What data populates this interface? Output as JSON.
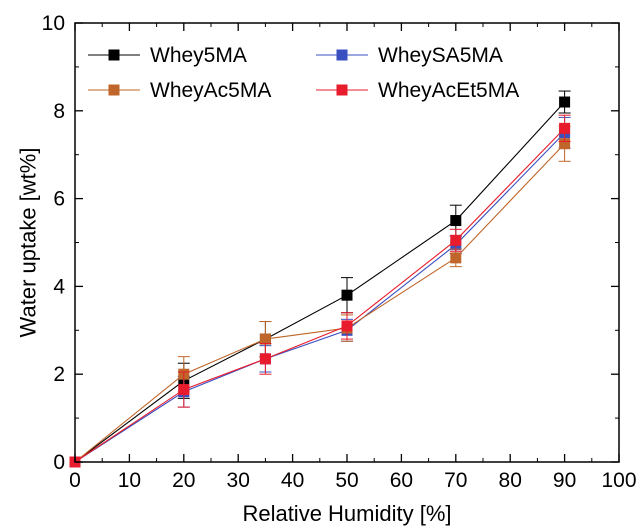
{
  "chart_data": {
    "type": "line",
    "title": "",
    "xlabel": "Relative Humidity [%]",
    "ylabel": "Water uptake [wt%]",
    "xlim": [
      0,
      100
    ],
    "ylim": [
      0,
      10
    ],
    "xticks": [
      "0",
      "10",
      "20",
      "30",
      "40",
      "50",
      "60",
      "70",
      "80",
      "90",
      "100"
    ],
    "yticks": [
      "0",
      "2",
      "4",
      "6",
      "8",
      "10"
    ],
    "grid": false,
    "legend_position": "top",
    "series": [
      {
        "name": "Whey5MA",
        "color": "#000000",
        "marker": "square",
        "x": [
          0,
          20,
          35,
          50,
          70,
          90
        ],
        "y": [
          0,
          1.85,
          2.8,
          3.8,
          5.5,
          8.2
        ],
        "err": [
          0,
          0.4,
          0.4,
          0.4,
          0.35,
          0.25
        ]
      },
      {
        "name": "WheySA5MA",
        "color": "#3a4fc0",
        "marker": "square",
        "x": [
          0,
          20,
          35,
          50,
          70,
          90
        ],
        "y": [
          0,
          1.6,
          2.35,
          3.0,
          4.95,
          7.5
        ],
        "err": [
          0,
          0.35,
          0.3,
          0.25,
          0.2,
          0.35
        ]
      },
      {
        "name": "WheyAc5MA",
        "color": "#c0662a",
        "marker": "square",
        "x": [
          0,
          20,
          35,
          50,
          70,
          90
        ],
        "y": [
          0,
          2.0,
          2.8,
          3.05,
          4.65,
          7.25
        ],
        "err": [
          0,
          0.4,
          0.4,
          0.3,
          0.2,
          0.4
        ]
      },
      {
        "name": "WheyAcEt5MA",
        "color": "#e81c2c",
        "marker": "square",
        "x": [
          0,
          20,
          35,
          50,
          70,
          90
        ],
        "y": [
          0,
          1.65,
          2.35,
          3.1,
          5.05,
          7.6
        ],
        "err": [
          0,
          0.4,
          0.35,
          0.3,
          0.25,
          0.3
        ]
      }
    ]
  }
}
